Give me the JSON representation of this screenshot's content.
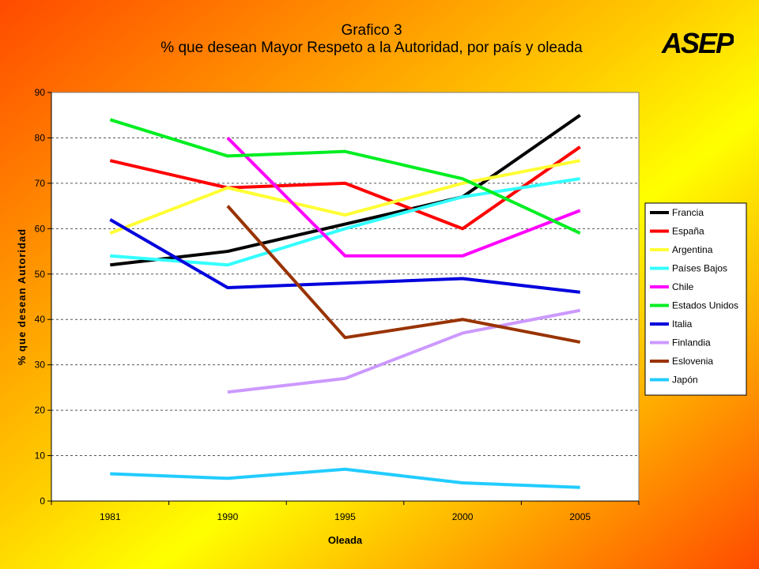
{
  "header": {
    "title_line1": "Grafico 3",
    "title_line2": "% que desean Mayor Respeto a la Autoridad, por país y oleada",
    "logo_text": "ASEP"
  },
  "colors": {
    "background_from": "#ff4a00",
    "background_mid": "#ffaa00",
    "background_to": "#ffff00",
    "plot_area": "#ffffff"
  },
  "chart_data": {
    "type": "line",
    "xlabel": "Oleada",
    "ylabel": "% que desean Autoridad",
    "categories": [
      "1981",
      "1990",
      "1995",
      "2000",
      "2005"
    ],
    "ylim": [
      0,
      90
    ],
    "yticks": [
      0,
      10,
      20,
      30,
      40,
      50,
      60,
      70,
      80,
      90
    ],
    "grid": "horizontal dashed",
    "legend_position": "right",
    "series": [
      {
        "name": "Francia",
        "color": "#000000",
        "values": [
          52,
          55,
          61,
          67,
          85
        ]
      },
      {
        "name": "España",
        "color": "#ff0000",
        "values": [
          75,
          69,
          70,
          60,
          78
        ]
      },
      {
        "name": "Argentina",
        "color": "#ffff33",
        "values": [
          59,
          69,
          63,
          70,
          75
        ]
      },
      {
        "name": "Países Bajos",
        "color": "#33ffff",
        "values": [
          54,
          52,
          60,
          67,
          71
        ]
      },
      {
        "name": "Chile",
        "color": "#ff00ff",
        "values": [
          null,
          80,
          54,
          54,
          64
        ]
      },
      {
        "name": "Estados Unidos",
        "color": "#00ee22",
        "values": [
          84,
          76,
          77,
          71,
          59
        ]
      },
      {
        "name": "Italia",
        "color": "#0000dd",
        "values": [
          62,
          47,
          48,
          49,
          46
        ]
      },
      {
        "name": "Finlandia",
        "color": "#cc99ff",
        "values": [
          null,
          24,
          27,
          37,
          42
        ]
      },
      {
        "name": "Eslovenia",
        "color": "#993300",
        "values": [
          null,
          65,
          36,
          40,
          35
        ]
      },
      {
        "name": "Japón",
        "color": "#22ccff",
        "values": [
          6,
          5,
          7,
          4,
          3
        ]
      }
    ]
  }
}
